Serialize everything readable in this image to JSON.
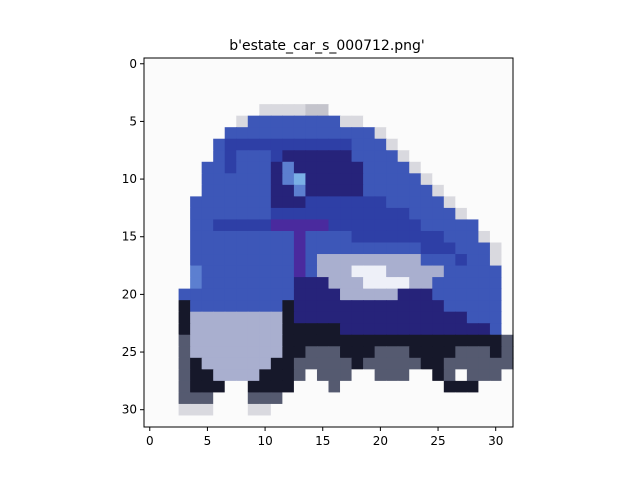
{
  "chart_data": {
    "type": "heatmap",
    "title": "b'estate_car_s_000712.png'",
    "xlabel": "",
    "ylabel": "",
    "image_size": [
      32,
      32
    ],
    "xlim": [
      -0.5,
      31.5
    ],
    "ylim": [
      31.5,
      -0.5
    ],
    "x_ticks": [
      0,
      5,
      10,
      15,
      20,
      25,
      30
    ],
    "y_ticks": [
      0,
      5,
      10,
      15,
      20,
      25,
      30
    ],
    "x_tick_labels": [
      "0",
      "5",
      "10",
      "15",
      "20",
      "25",
      "30"
    ],
    "y_tick_labels": [
      "0",
      "5",
      "10",
      "15",
      "20",
      "25",
      "30"
    ],
    "grid": false,
    "colors": {
      "background": "#fdfdfd",
      "car_body_blue": "#3d57b8",
      "car_dark_blue": "#2a2e8f",
      "window_light_blue": "#6fa8e0",
      "dark_shadow": "#101018",
      "silver": "#c9ccd9",
      "pale_gray": "#e6e6ea"
    },
    "pixel_rows": [
      "................................",
      "................................",
      "................................",
      "................................",
      "..........ppppcc................",
      "........pbbbbbbbbpp.............",
      ".......bbbbbbbbbbbbbp...........",
      "......bBBBBBBBBBBBbbbp..........",
      "......bBbbbBDDDDDDbbbbp.........",
      ".....bbBbbbDlDDDDDDbbbbp........",
      ".....bbbbbbDlLDDDDDbbbbbp.......",
      ".....bbbbbbDDlDDDDDbbbbbbp......",
      "....bbbbbbbDDDBBBBBBBbbbbbp.....",
      "....bbbbbbbBBBBBBBBBBBBbbbbp....",
      "....bbBBBBBVVVVVBBBBBBBBbbbbb...",
      "....bbbbbbbbbVbbbbBBBBBBBBbbbp..",
      "....bbbbbbbbbVbbbbbbbbbbBBBbbbp.",
      "....bbbbbbbbbVbsssssssssbbbBbbp.",
      "....lbbbbbbbbVbsssWWWsssssbbbbb.",
      "....lbbbbbbbbDDDsssWWWWssbbbbbb.",
      "...bbbbbbbbbbDDDDsssssDDDbbbbbb.",
      "...dbbbbbbbbdDDDDDDDDDDDDDbbbbb.",
      "...dssssssssdDDDDDDDDDDDDDDDbbb.",
      "...dssssssssdddddDDDDDDDDDDDDDb.",
      "...gssssssssdddddddddddddddddddg",
      "...gssssssssddgggdddgggddddgggdg",
      "...gdssssssddgggggdgggggddgggggg",
      "...gddssssdddg.ggg..ggg..dg.ggg.",
      "...gddd..dddd...g.........ddd...",
      "...ggg...ggg...................",
      "...ppp...pp.....................",
      "................................"
    ],
    "pixel_palette": {
      ".": "#fbfbfb",
      "p": "#d9d9df",
      "c": "#c4c4cc",
      "b": "#3d57b8",
      "B": "#2e3fa6",
      "D": "#26237a",
      "V": "#4a2a9e",
      "l": "#5c7fd0",
      "L": "#7ab0e6",
      "s": "#a9afcf",
      "W": "#eef0f8",
      "d": "#16182a",
      "g": "#555a70"
    }
  }
}
